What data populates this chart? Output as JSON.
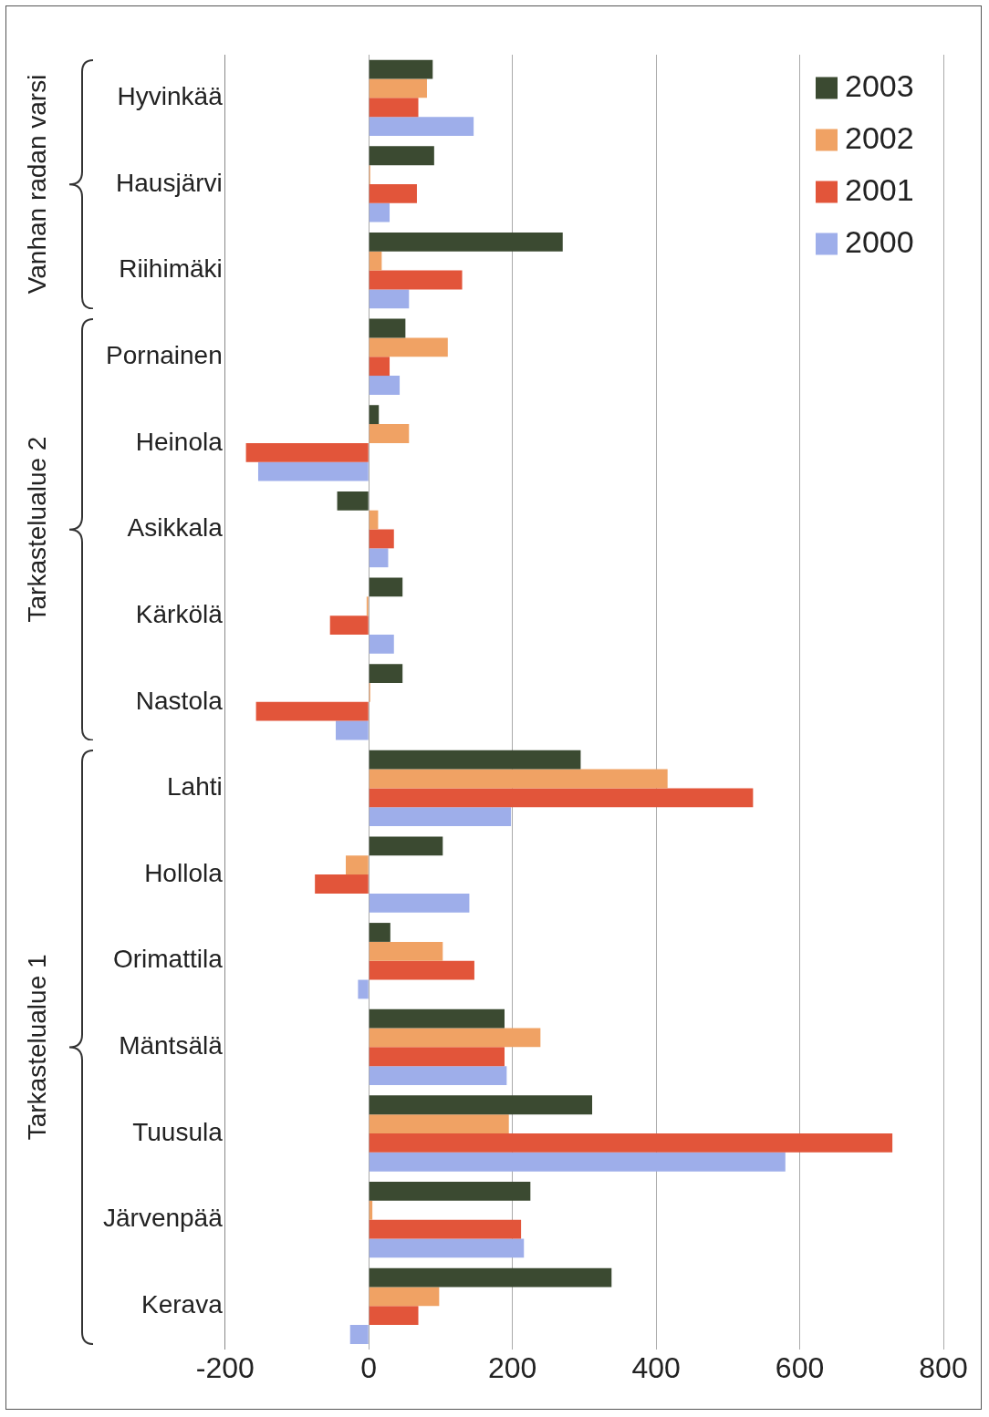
{
  "chart_data": {
    "type": "bar",
    "orientation": "horizontal",
    "categories": [
      "Hyvinkää",
      "Hausjärvi",
      "Riihimäki",
      "Pornainen",
      "Heinola",
      "Asikkala",
      "Kärkölä",
      "Nastola",
      "Lahti",
      "Hollola",
      "Orimattila",
      "Mäntsälä",
      "Tuusula",
      "Järvenpää",
      "Kerava"
    ],
    "series": [
      {
        "name": "2003",
        "color": "#3b4a31",
        "values": [
          89,
          91,
          270,
          51,
          14,
          -44,
          47,
          47,
          295,
          103,
          30,
          189,
          311,
          225,
          338
        ]
      },
      {
        "name": "2002",
        "color": "#f0a264",
        "values": [
          81,
          2,
          18,
          110,
          56,
          13,
          -3,
          2,
          416,
          -32,
          103,
          239,
          195,
          5,
          98
        ]
      },
      {
        "name": "2001",
        "color": "#e2553a",
        "values": [
          69,
          67,
          130,
          29,
          -171,
          35,
          -54,
          -157,
          535,
          -75,
          147,
          189,
          729,
          212,
          69
        ]
      },
      {
        "name": "2000",
        "color": "#9eaeea",
        "values": [
          146,
          29,
          56,
          43,
          -154,
          27,
          35,
          -46,
          198,
          140,
          -15,
          192,
          580,
          216,
          -26
        ]
      }
    ],
    "xlim": [
      -200,
      800
    ],
    "xticks": [
      -200,
      0,
      200,
      400,
      600,
      800
    ],
    "grid": "x",
    "legend": "top right",
    "annotations": [
      "Vanhan radan varsi",
      "Tarkastelualue 2",
      "Tarkastelualue 1"
    ]
  }
}
